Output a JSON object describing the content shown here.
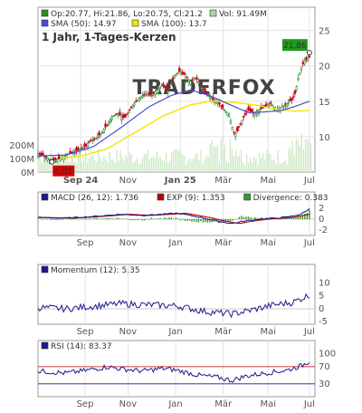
{
  "chart_data": [
    {
      "type": "candlestick",
      "title": "1 Jahr, 1-Tages-Kerzen",
      "legend": [
        {
          "text": "Op:20.77, Hi:21.86, Lo:20.75, Cl:21.2",
          "color": "#2e8b2e"
        },
        {
          "text": "Vol: 91.49M",
          "color": "#a8d8a0"
        },
        {
          "text": "SMA (50): 14.97",
          "color": "#4b4bd8"
        },
        {
          "text": "SMA (100): 13.7",
          "color": "#f2e600"
        }
      ],
      "x_ticks": [
        "Sep 24",
        "Nov",
        "Jan 25",
        "Mär",
        "Mai",
        "Jul"
      ],
      "x_tick_pos": [
        0.154,
        0.325,
        0.514,
        0.669,
        0.831,
        0.98
      ],
      "y_ticks": [
        10,
        15,
        20,
        25
      ],
      "y_range": [
        5,
        27
      ],
      "volume_ticks": [
        "0M",
        "100M",
        "200M"
      ],
      "volume_tick_values": [
        0,
        100,
        200
      ],
      "volume_range": [
        0,
        300
      ],
      "watermark": "TRADERFOX",
      "last_value": "21,86",
      "min_value": "6,01",
      "price_path": [
        [
          0,
          7.6
        ],
        [
          0.03,
          7.1
        ],
        [
          0.05,
          6.7
        ],
        [
          0.08,
          6.9
        ],
        [
          0.11,
          7.6
        ],
        [
          0.13,
          7.9
        ],
        [
          0.15,
          8.2
        ],
        [
          0.17,
          8.6
        ],
        [
          0.19,
          9.4
        ],
        [
          0.21,
          9.8
        ],
        [
          0.23,
          10.6
        ],
        [
          0.25,
          11.7
        ],
        [
          0.27,
          12.9
        ],
        [
          0.29,
          13.2
        ],
        [
          0.31,
          12.6
        ],
        [
          0.33,
          13.7
        ],
        [
          0.35,
          14.8
        ],
        [
          0.37,
          15.6
        ],
        [
          0.39,
          16.1
        ],
        [
          0.41,
          15.8
        ],
        [
          0.43,
          16.6
        ],
        [
          0.45,
          17.3
        ],
        [
          0.47,
          16.4
        ],
        [
          0.49,
          18.3
        ],
        [
          0.51,
          19.2
        ],
        [
          0.53,
          18.7
        ],
        [
          0.55,
          17.8
        ],
        [
          0.57,
          18.4
        ],
        [
          0.59,
          17.0
        ],
        [
          0.61,
          16.1
        ],
        [
          0.63,
          15.3
        ],
        [
          0.65,
          14.8
        ],
        [
          0.67,
          13.9
        ],
        [
          0.69,
          13.1
        ],
        [
          0.7,
          11.6
        ],
        [
          0.71,
          10.2
        ],
        [
          0.72,
          10.9
        ],
        [
          0.74,
          12.6
        ],
        [
          0.76,
          13.8
        ],
        [
          0.78,
          13.2
        ],
        [
          0.8,
          13.9
        ],
        [
          0.82,
          14.2
        ],
        [
          0.84,
          14.8
        ],
        [
          0.86,
          13.8
        ],
        [
          0.88,
          14.2
        ],
        [
          0.9,
          14.7
        ],
        [
          0.92,
          15.3
        ],
        [
          0.93,
          16.3
        ],
        [
          0.94,
          18.4
        ],
        [
          0.95,
          19.5
        ],
        [
          0.96,
          20.6
        ],
        [
          0.98,
          21.2
        ]
      ],
      "sma50_path": [
        [
          0,
          7.3
        ],
        [
          0.1,
          7.4
        ],
        [
          0.2,
          8.6
        ],
        [
          0.3,
          11.3
        ],
        [
          0.4,
          14.2
        ],
        [
          0.48,
          15.8
        ],
        [
          0.55,
          16.6
        ],
        [
          0.62,
          15.8
        ],
        [
          0.7,
          14.4
        ],
        [
          0.76,
          13.4
        ],
        [
          0.82,
          13.5
        ],
        [
          0.88,
          13.7
        ],
        [
          0.93,
          14.3
        ],
        [
          0.98,
          15.0
        ]
      ],
      "sma100_path": [
        [
          0.08,
          7.0
        ],
        [
          0.15,
          7.2
        ],
        [
          0.25,
          8.3
        ],
        [
          0.35,
          10.6
        ],
        [
          0.45,
          12.9
        ],
        [
          0.55,
          14.5
        ],
        [
          0.62,
          15.0
        ],
        [
          0.7,
          14.9
        ],
        [
          0.78,
          14.5
        ],
        [
          0.86,
          13.9
        ],
        [
          0.93,
          13.6
        ],
        [
          0.98,
          13.7
        ]
      ]
    },
    {
      "type": "line",
      "legend": [
        {
          "text": "MACD (26, 12): 1.736",
          "color": "#1a1a8c"
        },
        {
          "text": "EXP (9): 1.353",
          "color": "#c00000"
        },
        {
          "text": "Divergence: 0.383",
          "color": "#2e9c2e"
        }
      ],
      "y_ticks": [
        -2,
        0,
        2
      ],
      "y_range": [
        -3,
        3
      ]
    },
    {
      "type": "line",
      "legend": [
        {
          "text": "Momentum (12): 5.35",
          "color": "#1a1a8c"
        }
      ],
      "y_ticks": [
        -5,
        0,
        5,
        10
      ],
      "y_range": [
        -6,
        13
      ]
    },
    {
      "type": "line",
      "legend": [
        {
          "text": "RSI (14): 83.37",
          "color": "#1a1a8c"
        }
      ],
      "y_ticks": [
        30,
        70,
        100
      ],
      "y_range": [
        0,
        110
      ]
    }
  ],
  "x_ticks_lower": [
    "Sep",
    "Nov",
    "Jan",
    "Mär",
    "Mai",
    "Jul"
  ]
}
